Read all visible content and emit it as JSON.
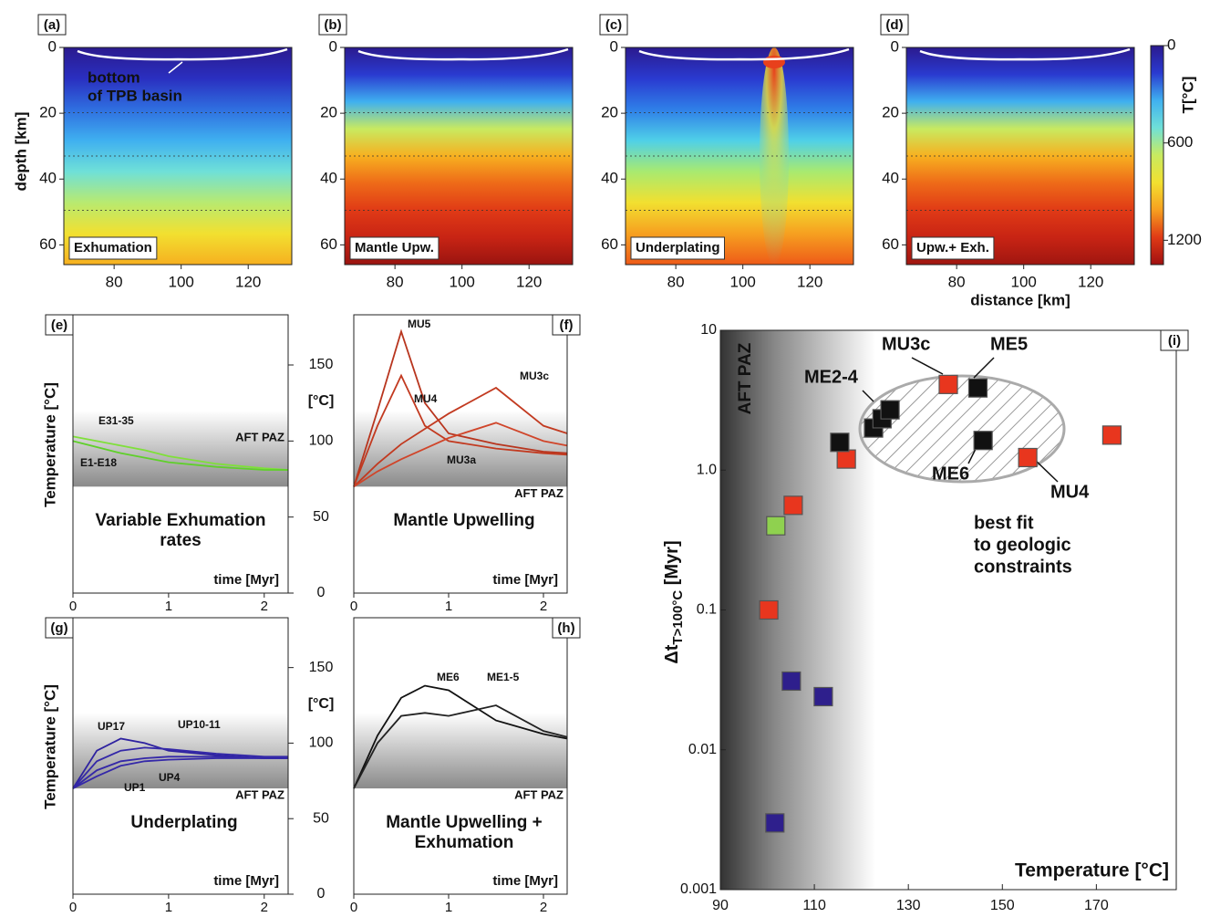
{
  "chart_data": [
    {
      "type": "field",
      "label": "(a)",
      "panel_name": "Exhumation",
      "ylabel": "depth [km]",
      "annotation": [
        "bottom",
        "of TPB basin"
      ],
      "xlim": [
        65,
        133
      ],
      "ylim": [
        0,
        66
      ],
      "xticks": [
        80,
        100,
        120
      ],
      "yticks": [
        0,
        20,
        40,
        60
      ],
      "colors": [
        "#2b1a8e",
        "#2a2fc0",
        "#2f6fe0",
        "#3fb0f0",
        "#6fe0d8",
        "#b8ea70",
        "#f2e030",
        "#f6b020"
      ]
    },
    {
      "type": "field",
      "label": "(b)",
      "panel_name": "Mantle Upw.",
      "xlim": [
        65,
        133
      ],
      "ylim": [
        0,
        66
      ],
      "xticks": [
        80,
        100,
        120
      ],
      "yticks": [
        0,
        20,
        40,
        60
      ],
      "colors": [
        "#2b1a8e",
        "#2a3ad0",
        "#3fb0f0",
        "#c8ea60",
        "#f7b020",
        "#ee6a18",
        "#e03a16",
        "#c82414",
        "#9a1410"
      ]
    },
    {
      "type": "field",
      "label": "(c)",
      "panel_name": "Underplating",
      "xlim": [
        65,
        133
      ],
      "ylim": [
        0,
        66
      ],
      "xticks": [
        80,
        100,
        120
      ],
      "yticks": [
        0,
        20,
        40,
        60
      ],
      "colors": [
        "#2b1a8e",
        "#2a3ad0",
        "#2f7fe8",
        "#4fd0e8",
        "#a8ea70",
        "#f2e030",
        "#f6a020",
        "#ee5a18"
      ]
    },
    {
      "type": "field",
      "label": "(d)",
      "panel_name": "Upw.+ Exh.",
      "xlabel": "distance [km]",
      "xlim": [
        65,
        133
      ],
      "ylim": [
        0,
        66
      ],
      "xticks": [
        80,
        100,
        120
      ],
      "yticks": [
        0,
        20,
        40,
        60
      ],
      "colors": [
        "#2b1a8e",
        "#2a3ad0",
        "#3fb0f0",
        "#c8ea60",
        "#f7b020",
        "#ee6a18",
        "#e03a16",
        "#c82414",
        "#a01610"
      ],
      "colorbar": {
        "label": "T[°C]",
        "lim": [
          0,
          1350
        ],
        "ticks": [
          0,
          600,
          1200
        ],
        "colors": [
          "#2b1a8e",
          "#2a3ad0",
          "#3fb0f0",
          "#6fe0d8",
          "#c8ea60",
          "#f2e030",
          "#f6a020",
          "#e03a16",
          "#a01010"
        ]
      }
    },
    {
      "type": "line",
      "label": "(e)",
      "title": [
        "Variable Exhumation",
        "rates"
      ],
      "title_color": "#3cb51c",
      "ylabel": "Temperature [°C]",
      "xlabel": "time [Myr]",
      "band": [
        70,
        120
      ],
      "band_label": "AFT PAZ",
      "xlim": [
        0,
        2.25
      ],
      "ylim": [
        0,
        183
      ],
      "xticks": [
        0,
        1,
        2
      ],
      "yticks": [
        0,
        50,
        100,
        150
      ],
      "x": [
        0,
        0.25,
        0.5,
        0.75,
        1,
        1.5,
        2,
        2.25
      ],
      "series": [
        {
          "name": "E31-35",
          "color": "#7fe03a",
          "values": [
            103,
            100,
            97,
            94,
            90,
            85,
            82,
            81
          ]
        },
        {
          "name": "E1-E18",
          "color": "#5fd02a",
          "values": [
            100,
            96,
            92,
            89,
            86,
            83,
            81,
            81
          ]
        }
      ]
    },
    {
      "type": "line",
      "label": "(f)",
      "title": [
        "Mantle Upwelling"
      ],
      "title_color": "#b5301e",
      "ylabel": "[°C]",
      "xlabel": "time [Myr]",
      "band": [
        70,
        120
      ],
      "band_label": "AFT PAZ",
      "xlim": [
        0,
        2.25
      ],
      "ylim": [
        0,
        183
      ],
      "xticks": [
        0,
        1,
        2
      ],
      "x": [
        0,
        0.25,
        0.5,
        0.75,
        1,
        1.5,
        2,
        2.25
      ],
      "series": [
        {
          "name": "MU5",
          "color": "#b8351e",
          "values": [
            70,
            120,
            172,
            125,
            105,
            98,
            93,
            92
          ]
        },
        {
          "name": "MU4",
          "color": "#c23a20",
          "values": [
            70,
            110,
            143,
            110,
            100,
            95,
            92,
            91
          ]
        },
        {
          "name": "MU3c",
          "color": "#c23a20",
          "values": [
            70,
            85,
            98,
            108,
            118,
            135,
            110,
            105
          ]
        },
        {
          "name": "MU3a",
          "color": "#d0452a",
          "values": [
            70,
            80,
            88,
            95,
            102,
            112,
            100,
            97
          ]
        }
      ]
    },
    {
      "type": "line",
      "label": "(g)",
      "title": [
        "Underplating"
      ],
      "title_color": "#3a2a8f",
      "ylabel": "Temperature [°C]",
      "xlabel": "time [Myr]",
      "band": [
        70,
        120
      ],
      "band_label": "AFT PAZ",
      "xlim": [
        0,
        2.25
      ],
      "ylim": [
        0,
        183
      ],
      "xticks": [
        0,
        1,
        2
      ],
      "yticks": [
        0,
        50,
        100,
        150
      ],
      "x": [
        0,
        0.25,
        0.5,
        0.75,
        1,
        1.5,
        2,
        2.25
      ],
      "series": [
        {
          "name": "UP17",
          "color": "#2e22a0",
          "values": [
            70,
            95,
            103,
            100,
            95,
            92,
            90,
            90
          ]
        },
        {
          "name": "UP10-11",
          "color": "#3428a8",
          "values": [
            70,
            88,
            95,
            97,
            96,
            93,
            91,
            91
          ]
        },
        {
          "name": "UP4",
          "color": "#3428a8",
          "values": [
            70,
            82,
            88,
            90,
            91,
            91,
            90,
            90
          ]
        },
        {
          "name": "UP1",
          "color": "#3428a8",
          "values": [
            70,
            78,
            85,
            88,
            89,
            90,
            90,
            90
          ]
        }
      ]
    },
    {
      "type": "line",
      "label": "(h)",
      "title": [
        "Mantle Upwelling +",
        "Exhumation"
      ],
      "title_color": "#111111",
      "ylabel": "[°C]",
      "xlabel": "time [Myr]",
      "band": [
        70,
        120
      ],
      "band_label": "AFT PAZ",
      "xlim": [
        0,
        2.25
      ],
      "ylim": [
        0,
        183
      ],
      "xticks": [
        0,
        1,
        2
      ],
      "x": [
        0,
        0.25,
        0.5,
        0.75,
        1,
        1.5,
        2,
        2.25
      ],
      "series": [
        {
          "name": "ME6",
          "color": "#111111",
          "values": [
            70,
            105,
            130,
            138,
            135,
            115,
            106,
            103
          ]
        },
        {
          "name": "ME1-5",
          "color": "#222222",
          "values": [
            70,
            100,
            118,
            120,
            118,
            125,
            108,
            104
          ]
        }
      ]
    },
    {
      "type": "scatter",
      "label": "(i)",
      "xlabel": "Temperature [°C]",
      "ylabel": [
        "Δt",
        "T>100°C",
        " [Myr]"
      ],
      "log_y": true,
      "band_label": "AFT PAZ",
      "xlim": [
        90,
        187
      ],
      "ylim": [
        0.001,
        10
      ],
      "xticks": [
        90,
        110,
        130,
        150,
        170
      ],
      "yticks": [
        10,
        {
          "value": 1,
          "label": "1.0"
        },
        0.1,
        0.01,
        0.001
      ],
      "series": [
        {
          "color": "#e8361e",
          "x": [
            138.5,
            116.8,
            155.4,
            173.3,
            105.5,
            100.3
          ],
          "values": [
            4.1,
            1.2,
            1.23,
            1.78,
            0.56,
            0.1
          ]
        },
        {
          "color": "#8fd14f",
          "x": [
            101.8
          ],
          "values": [
            0.4
          ]
        },
        {
          "color": "#111111",
          "x": [
            144.8,
            115.4,
            145.9,
            122.6,
            124.4,
            126.1
          ],
          "values": [
            3.87,
            1.58,
            1.63,
            2.0,
            2.33,
            2.7
          ]
        },
        {
          "color": "#2e1f8c",
          "x": [
            105.1,
            111.9,
            101.6
          ],
          "values": [
            0.031,
            0.024,
            0.003
          ]
        }
      ],
      "annotations": [
        {
          "text": "MU3c",
          "color": "#c0301e"
        },
        {
          "text": "ME5",
          "color": "#111111"
        },
        {
          "text": "ME2-4",
          "color": "#111111"
        },
        {
          "text": "ME6",
          "color": "#111111"
        },
        {
          "text": "MU4",
          "color": "#c0301e"
        }
      ],
      "note": [
        "best fit",
        "to geologic",
        "constraints"
      ]
    }
  ]
}
